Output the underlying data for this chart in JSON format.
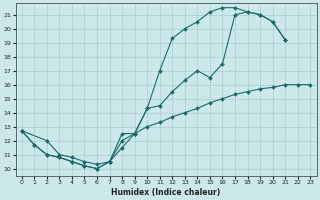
{
  "xlabel": "Humidex (Indice chaleur)",
  "bg_color": "#cce8eb",
  "grid_color": "#aacccc",
  "line_color": "#1a6b6b",
  "xlim": [
    -0.5,
    23.5
  ],
  "ylim": [
    9.5,
    21.8
  ],
  "xticks": [
    0,
    1,
    2,
    3,
    4,
    5,
    6,
    7,
    8,
    9,
    10,
    11,
    12,
    13,
    14,
    15,
    16,
    17,
    18,
    19,
    20,
    21,
    22,
    23
  ],
  "yticks": [
    10,
    11,
    12,
    13,
    14,
    15,
    16,
    17,
    18,
    19,
    20,
    21
  ],
  "line1_x": [
    0,
    1,
    2,
    3,
    4,
    5,
    6,
    7,
    8,
    9,
    10,
    11,
    12,
    13,
    14,
    15,
    16,
    17,
    18,
    19,
    20,
    21
  ],
  "line1_y": [
    12.7,
    11.7,
    11.0,
    10.8,
    10.5,
    10.2,
    10.0,
    10.5,
    12.5,
    12.5,
    14.3,
    17.0,
    19.3,
    20.0,
    20.5,
    21.2,
    21.5,
    21.5,
    21.2,
    21.0,
    20.5,
    19.2
  ],
  "line2_x": [
    0,
    2,
    3,
    4,
    5,
    6,
    7,
    8,
    9,
    10,
    11,
    12,
    13,
    14,
    15,
    16,
    17,
    18,
    19,
    20,
    21
  ],
  "line2_y": [
    12.7,
    12.0,
    11.0,
    10.8,
    10.5,
    10.3,
    10.5,
    11.5,
    12.5,
    14.3,
    14.5,
    15.5,
    16.3,
    17.0,
    16.5,
    17.5,
    21.0,
    21.2,
    21.0,
    20.5,
    19.2
  ],
  "line3_x": [
    0,
    1,
    2,
    3,
    4,
    5,
    6,
    7,
    8,
    9,
    10,
    11,
    12,
    13,
    14,
    15,
    16,
    17,
    18,
    19,
    20,
    21,
    22,
    23
  ],
  "line3_y": [
    12.7,
    11.7,
    11.0,
    10.8,
    10.5,
    10.2,
    10.0,
    10.5,
    12.0,
    12.5,
    13.0,
    13.3,
    13.7,
    14.0,
    14.3,
    14.7,
    15.0,
    15.3,
    15.5,
    15.7,
    15.8,
    16.0,
    16.0,
    16.0
  ]
}
